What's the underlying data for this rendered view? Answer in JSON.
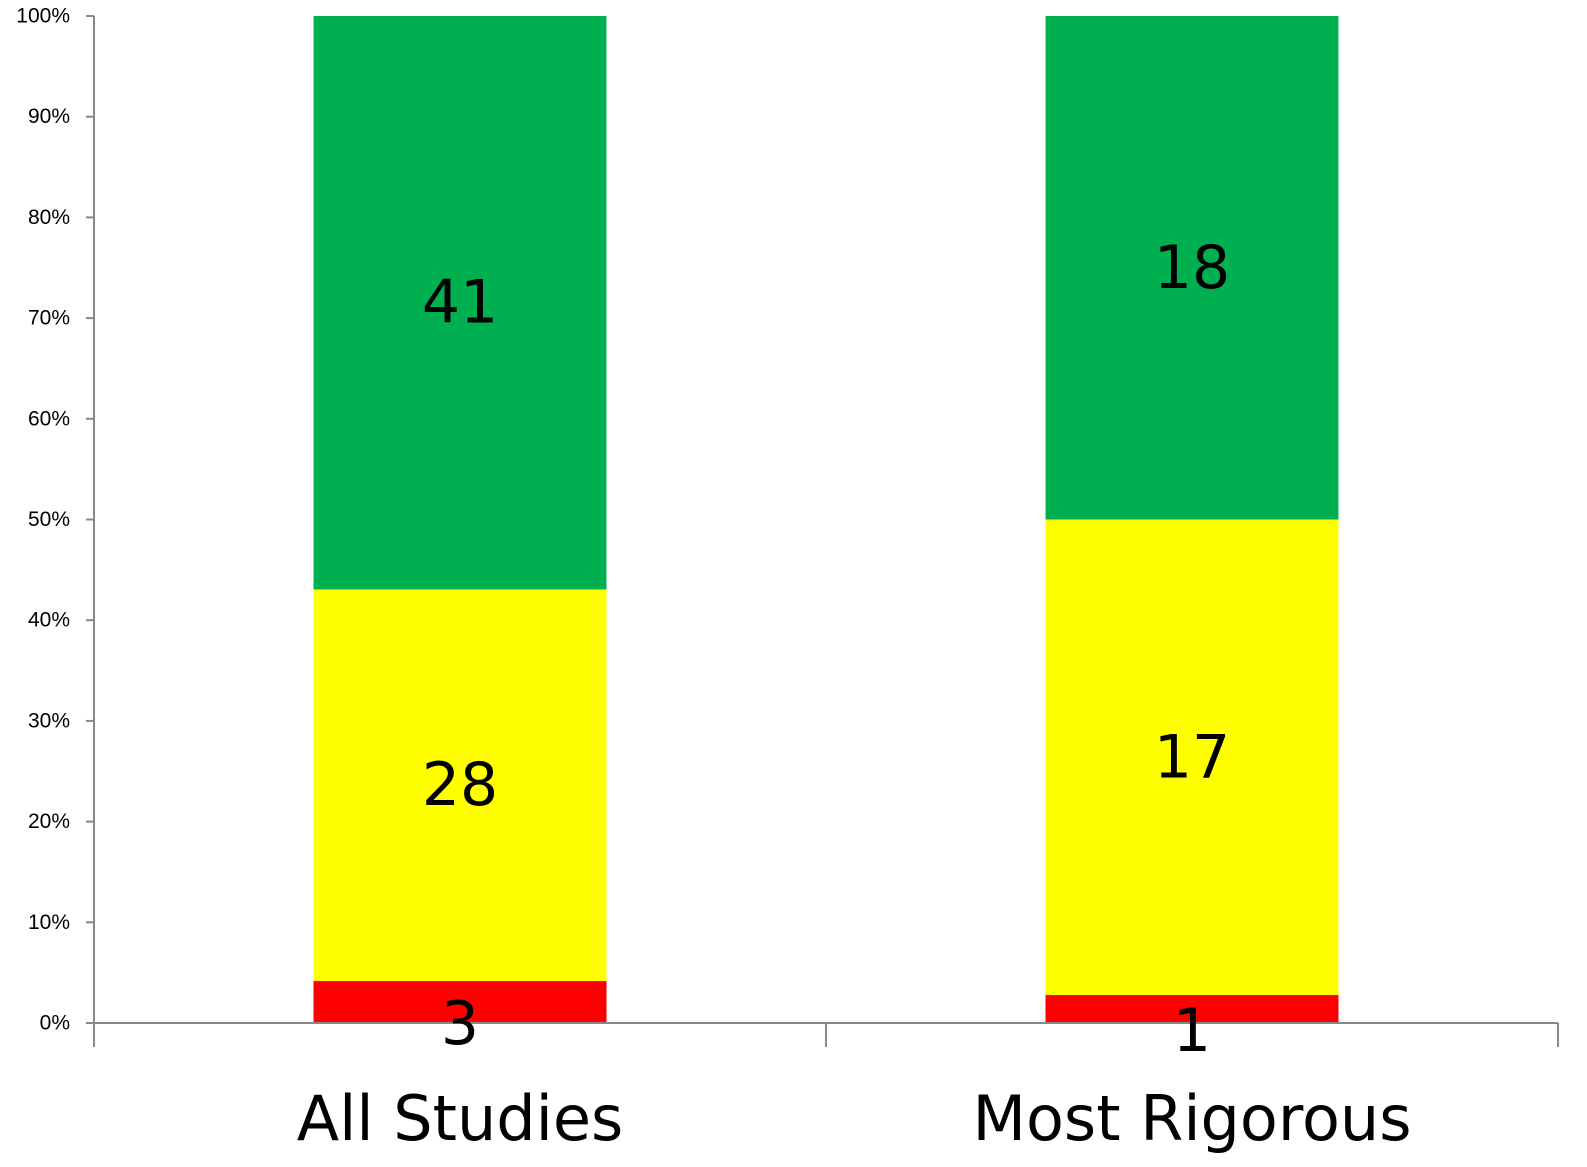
{
  "chart_data": {
    "type": "bar",
    "stacked": true,
    "normalized": true,
    "categories": [
      "All Studies",
      "Most Rigorous"
    ],
    "series": [
      {
        "color": "#ff0000",
        "values": [
          3,
          1
        ],
        "labels": [
          "3",
          "1"
        ]
      },
      {
        "color": "#ffff00",
        "values": [
          28,
          17
        ],
        "labels": [
          "28",
          "17"
        ]
      },
      {
        "color": "#00b050",
        "values": [
          41,
          18
        ],
        "labels": [
          "41",
          "18"
        ]
      }
    ],
    "title": "",
    "xlabel": "",
    "ylabel": "",
    "ylim": [
      0,
      100
    ],
    "yticks": [
      0,
      10,
      20,
      30,
      40,
      50,
      60,
      70,
      80,
      90,
      100
    ],
    "ytick_labels": [
      "0%",
      "10%",
      "20%",
      "30%",
      "40%",
      "50%",
      "60%",
      "70%",
      "80%",
      "90%",
      "100%"
    ],
    "grid": false,
    "legend": "none"
  }
}
